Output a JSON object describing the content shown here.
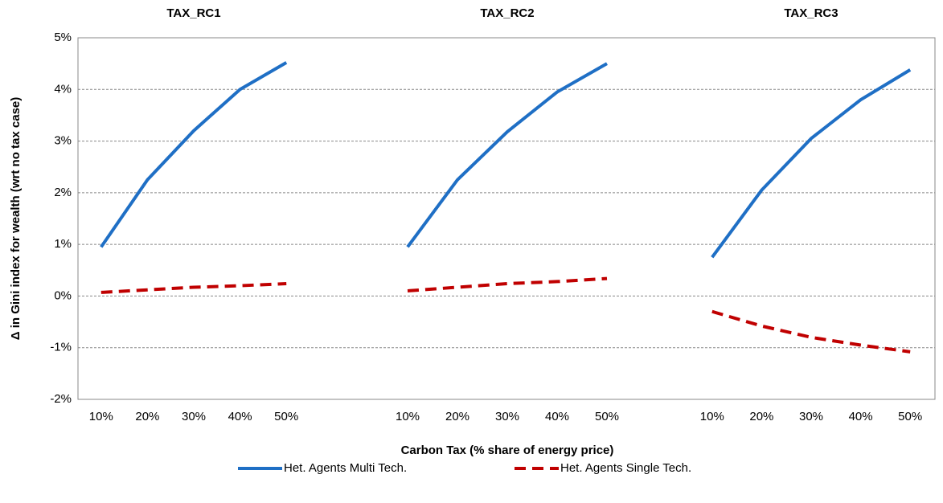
{
  "chart_data": {
    "type": "line",
    "ylabel": "Δ in Gini index for wealth (wrt no tax case)",
    "xlabel": "Carbon Tax (% share of energy price)",
    "ylim": [
      -2,
      5
    ],
    "yticks": [
      {
        "value": -2,
        "label": "-2%"
      },
      {
        "value": -1,
        "label": "-1%"
      },
      {
        "value": 0,
        "label": "0%"
      },
      {
        "value": 1,
        "label": "1%"
      },
      {
        "value": 2,
        "label": "2%"
      },
      {
        "value": 3,
        "label": "3%"
      },
      {
        "value": 4,
        "label": "4%"
      },
      {
        "value": 5,
        "label": "5%"
      }
    ],
    "grid": true,
    "legend": "bottom",
    "series": [
      {
        "name": "Het. Agents Multi Tech.",
        "color": "#1f6fc5",
        "dash": "solid"
      },
      {
        "name": "Het. Agents Single Tech.",
        "color": "#c00000",
        "dash": "dashed"
      }
    ],
    "panels": [
      {
        "title": "TAX_RC1",
        "categories": [
          "10%",
          "20%",
          "30%",
          "40%",
          "50%"
        ],
        "values": [
          [
            0.95,
            2.25,
            3.2,
            4.0,
            4.52
          ],
          [
            0.07,
            0.12,
            0.17,
            0.2,
            0.24
          ]
        ]
      },
      {
        "title": "TAX_RC2",
        "categories": [
          "10%",
          "20%",
          "30%",
          "40%",
          "50%"
        ],
        "values": [
          [
            0.95,
            2.25,
            3.18,
            3.95,
            4.5
          ],
          [
            0.1,
            0.17,
            0.24,
            0.28,
            0.34
          ]
        ]
      },
      {
        "title": "TAX_RC3",
        "categories": [
          "10%",
          "20%",
          "30%",
          "40%",
          "50%"
        ],
        "values": [
          [
            0.75,
            2.05,
            3.05,
            3.8,
            4.38
          ],
          [
            -0.3,
            -0.58,
            -0.8,
            -0.95,
            -1.08
          ]
        ]
      }
    ]
  }
}
